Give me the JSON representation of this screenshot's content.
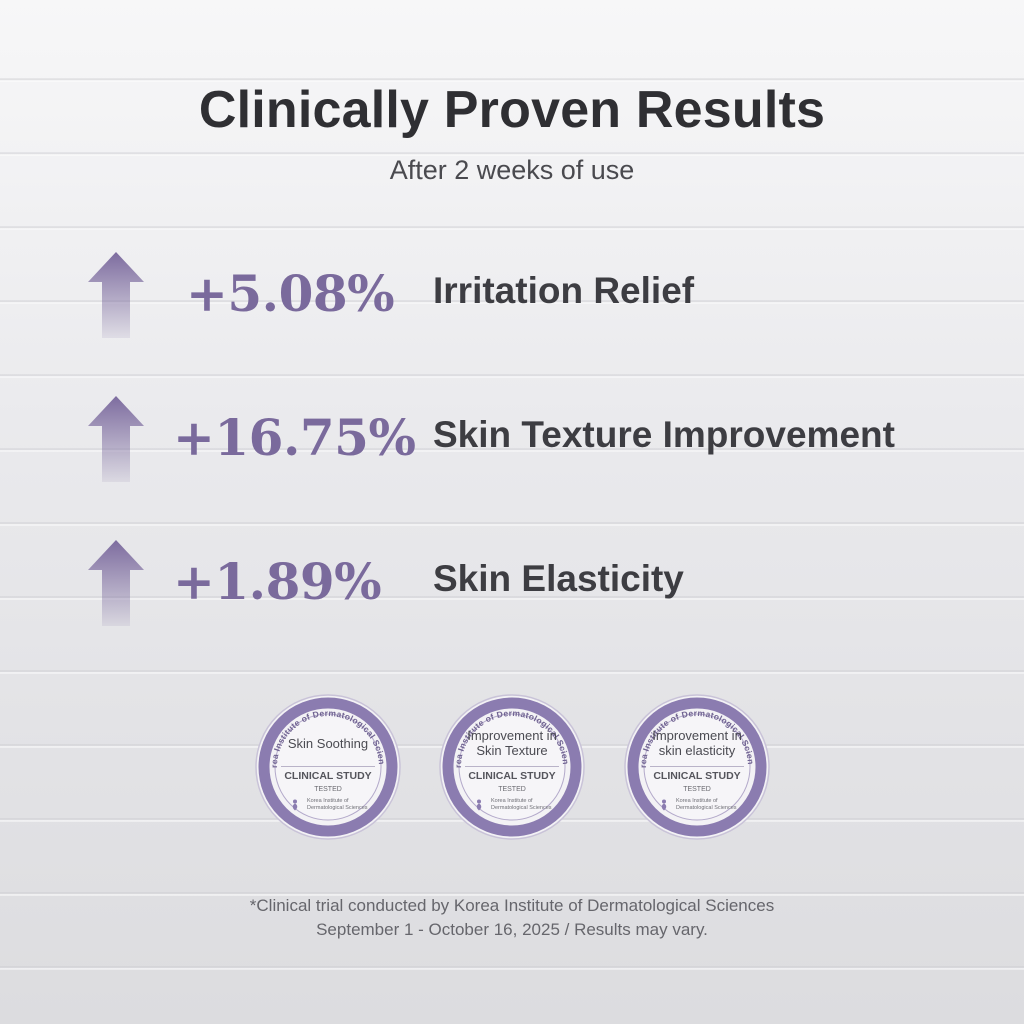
{
  "header": {
    "title": "Clinically Proven Results",
    "subtitle": "After 2 weeks of use"
  },
  "results": [
    {
      "icon": "up-arrow-icon",
      "value": "+5.08%",
      "label": "Irritation Relief"
    },
    {
      "icon": "up-arrow-icon",
      "value": "+16.75%",
      "label": "Skin Texture Improvement"
    },
    {
      "icon": "up-arrow-icon",
      "value": "+1.89%",
      "label": "Skin Elasticity"
    }
  ],
  "badges": [
    {
      "ring_text": "Korea Institute of Dermatological Sciences",
      "headline": "Skin Soothing",
      "study": "CLINICAL STUDY",
      "tested": "TESTED",
      "institute": "Korea Institute of Dermatological Sciences"
    },
    {
      "ring_text": "Korea Institute of Dermatological Sciences",
      "headline": "Improvement in Skin Texture",
      "study": "CLINICAL STUDY",
      "tested": "TESTED",
      "institute": "Korea Institute of Dermatological Sciences"
    },
    {
      "ring_text": "Korea Institute of Dermatological Sciences",
      "headline": "Improvement in skin elasticity",
      "study": "CLINICAL STUDY",
      "tested": "TESTED",
      "institute": "Korea Institute of Dermatological Sciences"
    }
  ],
  "footer": {
    "line1": "*Clinical trial conducted by Korea Institute of Dermatological Sciences",
    "line2": "September 1 - October 16, 2025 / Results may vary."
  },
  "colors": {
    "accent": "#7a6a9c",
    "badge_ring": "#8b7cb0",
    "text_dark": "#2f2f33"
  }
}
